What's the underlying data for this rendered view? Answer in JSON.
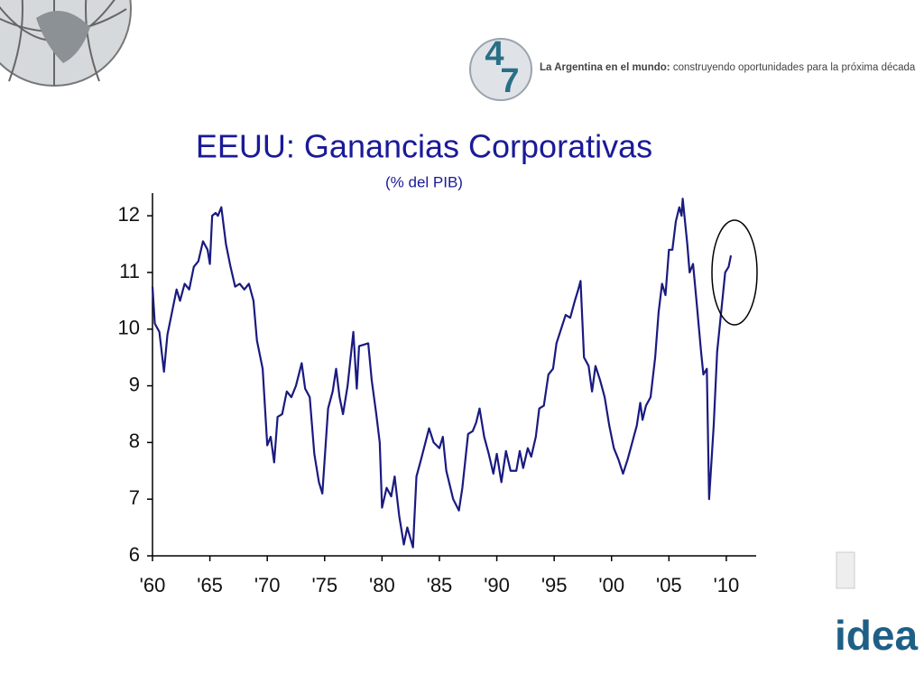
{
  "header": {
    "logo_top": "4",
    "logo_bottom": "7",
    "tagline_bold": "La Argentina en el mundo:",
    "tagline": "construyendo oportunidades para la próxima década"
  },
  "footer": {
    "logo": "idea"
  },
  "chart_data": {
    "type": "line",
    "title": "EEUU: Ganancias Corporativas",
    "subtitle": "(% del PIB)",
    "color": "#1a1a80",
    "x": [
      1960.0,
      1960.2,
      1960.6,
      1961.0,
      1961.3,
      1961.7,
      1962.1,
      1962.4,
      1962.8,
      1963.2,
      1963.6,
      1964.0,
      1964.4,
      1964.8,
      1965.0,
      1965.2,
      1965.5,
      1965.7,
      1966.0,
      1966.4,
      1966.8,
      1967.2,
      1967.6,
      1968.0,
      1968.4,
      1968.8,
      1969.1,
      1969.6,
      1970.0,
      1970.3,
      1970.6,
      1970.9,
      1971.3,
      1971.7,
      1972.1,
      1972.5,
      1973.0,
      1973.3,
      1973.7,
      1974.1,
      1974.5,
      1974.8,
      1975.3,
      1975.7,
      1976.0,
      1976.3,
      1976.6,
      1977.0,
      1977.5,
      1977.8,
      1978.0,
      1978.8,
      1979.1,
      1979.5,
      1979.8,
      1980.0,
      1980.4,
      1980.8,
      1981.1,
      1981.5,
      1981.9,
      1982.2,
      1982.7,
      1983.0,
      1983.4,
      1984.1,
      1984.5,
      1985.0,
      1985.3,
      1985.6,
      1986.2,
      1986.7,
      1987.0,
      1987.5,
      1987.9,
      1988.2,
      1988.5,
      1988.9,
      1989.3,
      1989.7,
      1990.0,
      1990.4,
      1990.8,
      1991.2,
      1991.7,
      1992.0,
      1992.3,
      1992.7,
      1993.0,
      1993.4,
      1993.7,
      1994.1,
      1994.5,
      1994.9,
      1995.2,
      1995.6,
      1996.0,
      1996.4,
      1996.8,
      1997.1,
      1997.3,
      1997.6,
      1998.0,
      1998.3,
      1998.6,
      1999.0,
      1999.4,
      1999.8,
      2000.2,
      2000.6,
      2001.0,
      2001.4,
      2001.8,
      2002.2,
      2002.5,
      2002.7,
      2003.0,
      2003.4,
      2003.8,
      2004.1,
      2004.4,
      2004.7,
      2005.0,
      2005.3,
      2005.6,
      2005.9,
      2006.1,
      2006.2,
      2006.6,
      2006.8,
      2007.1,
      2007.4,
      2007.8,
      2008.0,
      2008.3,
      2008.5,
      2008.9,
      2009.2,
      2009.6,
      2009.9,
      2010.2,
      2010.4
    ],
    "values": [
      10.75,
      10.1,
      9.95,
      9.25,
      9.9,
      10.3,
      10.7,
      10.5,
      10.8,
      10.7,
      11.1,
      11.2,
      11.55,
      11.4,
      11.15,
      12.0,
      12.05,
      12.0,
      12.15,
      11.5,
      11.1,
      10.75,
      10.8,
      10.7,
      10.8,
      10.5,
      9.8,
      9.3,
      7.95,
      8.1,
      7.65,
      8.45,
      8.5,
      8.9,
      8.8,
      9.0,
      9.4,
      8.95,
      8.8,
      7.8,
      7.3,
      7.1,
      8.6,
      8.9,
      9.3,
      8.8,
      8.5,
      9.0,
      9.95,
      8.95,
      9.7,
      9.75,
      9.1,
      8.5,
      8.0,
      6.85,
      7.2,
      7.05,
      7.4,
      6.7,
      6.2,
      6.5,
      6.15,
      7.4,
      7.7,
      8.25,
      8.0,
      7.9,
      8.1,
      7.5,
      7.0,
      6.8,
      7.2,
      8.15,
      8.2,
      8.35,
      8.6,
      8.1,
      7.8,
      7.45,
      7.8,
      7.3,
      7.85,
      7.5,
      7.5,
      7.85,
      7.55,
      7.9,
      7.75,
      8.1,
      8.6,
      8.65,
      9.2,
      9.3,
      9.75,
      10.0,
      10.25,
      10.2,
      10.5,
      10.7,
      10.85,
      9.5,
      9.35,
      8.9,
      9.35,
      9.1,
      8.8,
      8.3,
      7.9,
      7.7,
      7.45,
      7.7,
      8.0,
      8.3,
      8.7,
      8.4,
      8.65,
      8.8,
      9.5,
      10.3,
      10.8,
      10.6,
      11.4,
      11.4,
      11.9,
      12.15,
      12.0,
      12.3,
      11.5,
      11.0,
      11.15,
      10.5,
      9.6,
      9.2,
      9.3,
      7.0,
      8.3,
      9.6,
      10.4,
      11.0,
      11.1,
      11.3
    ],
    "xlim": [
      1960,
      2012.6
    ],
    "xticks": [
      {
        "value": 1960,
        "label": "'60"
      },
      {
        "value": 1965,
        "label": "'65"
      },
      {
        "value": 1970,
        "label": "'70"
      },
      {
        "value": 1975,
        "label": "'75"
      },
      {
        "value": 1980,
        "label": "'80"
      },
      {
        "value": 1985,
        "label": "'85"
      },
      {
        "value": 1990,
        "label": "'90"
      },
      {
        "value": 1995,
        "label": "'95"
      },
      {
        "value": 2000,
        "label": "'00"
      },
      {
        "value": 2005,
        "label": "'05"
      },
      {
        "value": 2010,
        "label": "'10"
      }
    ],
    "ylim": [
      6,
      12.4
    ],
    "yticks": [
      6,
      7,
      8,
      9,
      10,
      11,
      12
    ]
  }
}
